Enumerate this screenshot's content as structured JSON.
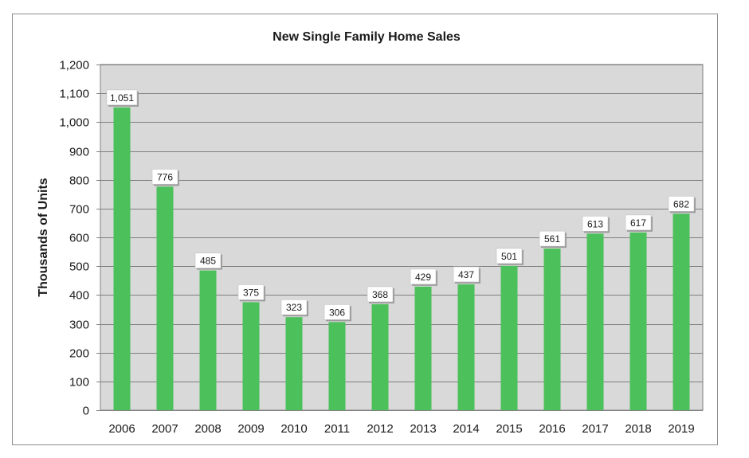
{
  "chart_data": {
    "type": "bar",
    "title": "New Single Family Home Sales",
    "xlabel": "",
    "ylabel": "Thousands of Units",
    "ylim": [
      0,
      1200
    ],
    "yticks": [
      0,
      100,
      200,
      300,
      400,
      500,
      600,
      700,
      800,
      900,
      1000,
      1100,
      1200
    ],
    "ytick_labels": [
      "0",
      "100",
      "200",
      "300",
      "400",
      "500",
      "600",
      "700",
      "800",
      "900",
      "1,000",
      "1,100",
      "1,200"
    ],
    "categories": [
      "2006",
      "2007",
      "2008",
      "2009",
      "2010",
      "2011",
      "2012",
      "2013",
      "2014",
      "2015",
      "2016",
      "2017",
      "2018",
      "2019"
    ],
    "values": [
      1051,
      776,
      485,
      375,
      323,
      306,
      368,
      429,
      437,
      501,
      561,
      613,
      617,
      682
    ],
    "value_labels": [
      "1,051",
      "776",
      "485",
      "375",
      "323",
      "306",
      "368",
      "429",
      "437",
      "501",
      "561",
      "613",
      "617",
      "682"
    ],
    "grid": true,
    "legend": "none",
    "colors": {
      "bar": "#4cc05a",
      "plot_background": "#d9d9d9",
      "gridline": "#808080"
    }
  }
}
